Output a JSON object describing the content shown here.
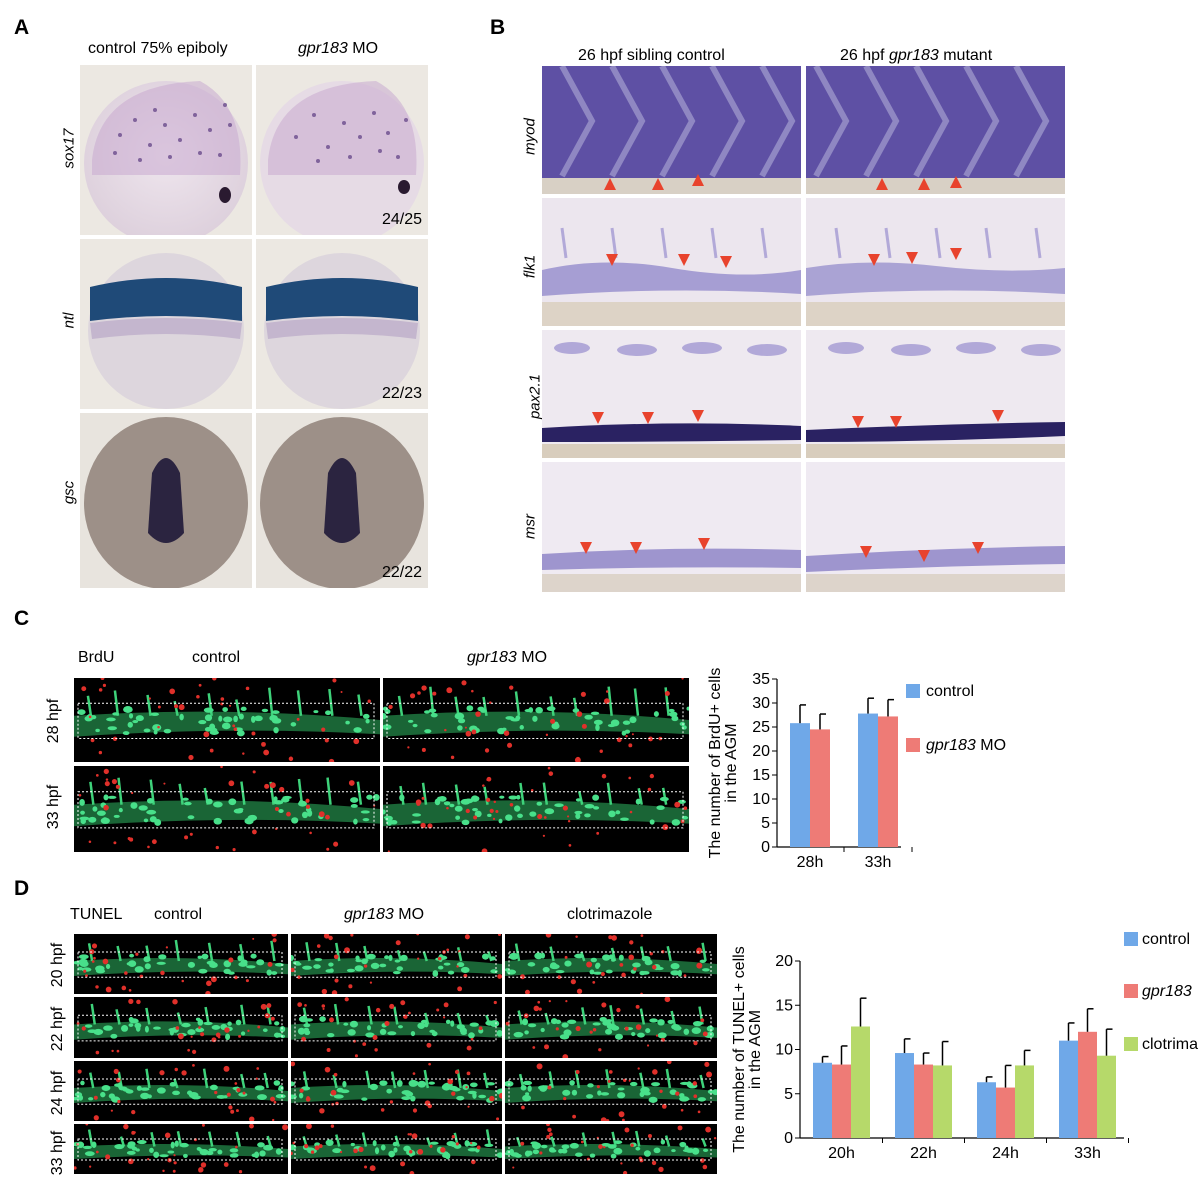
{
  "panel_labels": {
    "a": "A",
    "b": "B",
    "c": "C",
    "d": "D"
  },
  "panel_a": {
    "col_headers": {
      "control": "control 75% epiboly",
      "mo_gene": "gpr183",
      "mo_suffix": "MO"
    },
    "row_genes": [
      "sox17",
      "ntl",
      "gsc"
    ],
    "counts": [
      "24/25",
      "22/23",
      "22/22"
    ]
  },
  "panel_b": {
    "col_headers": {
      "control": "26 hpf sibling control",
      "mutant_prefix": "26 hpf",
      "mutant_gene": "gpr183",
      "mutant_suffix": "mutant"
    },
    "row_genes": [
      "myod",
      "flk1",
      "pax2.1",
      "msr"
    ]
  },
  "panel_c": {
    "stain": "BrdU",
    "col_headers": {
      "control": "control",
      "mo_gene": "gpr183",
      "mo_suffix": "MO"
    },
    "row_labels": [
      "28 hpf",
      "33 hpf"
    ]
  },
  "panel_d": {
    "stain": "TUNEL",
    "col_headers": {
      "control": "control",
      "mo_gene": "gpr183",
      "mo_suffix": "MO",
      "drug": "clotrimazole"
    },
    "row_labels": [
      "20 hpf",
      "22 hpf",
      "24 hpf",
      "33 hpf"
    ]
  },
  "chart_data": [
    {
      "type": "bar",
      "categories": [
        "28h",
        "33h"
      ],
      "series": [
        {
          "name": "control",
          "values": [
            25.8,
            27.8
          ],
          "errors": [
            3.8,
            3.2
          ],
          "color": "#6fa8e8"
        },
        {
          "name": "gpr183 MO",
          "values": [
            24.5,
            27.2
          ],
          "errors": [
            3.2,
            3.5
          ],
          "color": "#ee7b76"
        }
      ],
      "legend": {
        "control": "control",
        "mo_gene": "gpr183",
        "mo_suffix": "MO"
      },
      "ylabel_line1": "The number of BrdU+ cells",
      "ylabel_line2": "in the AGM",
      "ylim": [
        0,
        35
      ],
      "yticks": [
        "0",
        "5",
        "10",
        "15",
        "20",
        "25",
        "30",
        "35"
      ],
      "legend_position": "right"
    },
    {
      "type": "bar",
      "categories": [
        "20h",
        "22h",
        "24h",
        "33h"
      ],
      "series": [
        {
          "name": "control",
          "values": [
            8.5,
            9.6,
            6.3,
            11.0
          ],
          "errors": [
            0.7,
            1.6,
            0.6,
            2.0
          ],
          "color": "#6fa8e8"
        },
        {
          "name": "gpr183",
          "values": [
            8.3,
            8.3,
            5.7,
            12.0
          ],
          "errors": [
            2.1,
            1.3,
            2.5,
            2.6
          ],
          "color": "#ee7b76"
        },
        {
          "name": "clotrima",
          "values": [
            12.6,
            8.2,
            8.2,
            9.3
          ],
          "errors": [
            3.2,
            2.7,
            1.7,
            3.0
          ],
          "color": "#b6d96a"
        }
      ],
      "legend": [
        "control",
        "gpr183",
        "clotrima"
      ],
      "ylabel_line1": "The number of TUNEL+ cells",
      "ylabel_line2": "in the AGM",
      "ylim": [
        0,
        20
      ],
      "yticks": [
        "0",
        "5",
        "10",
        "15",
        "20"
      ],
      "legend_position": "right"
    }
  ]
}
